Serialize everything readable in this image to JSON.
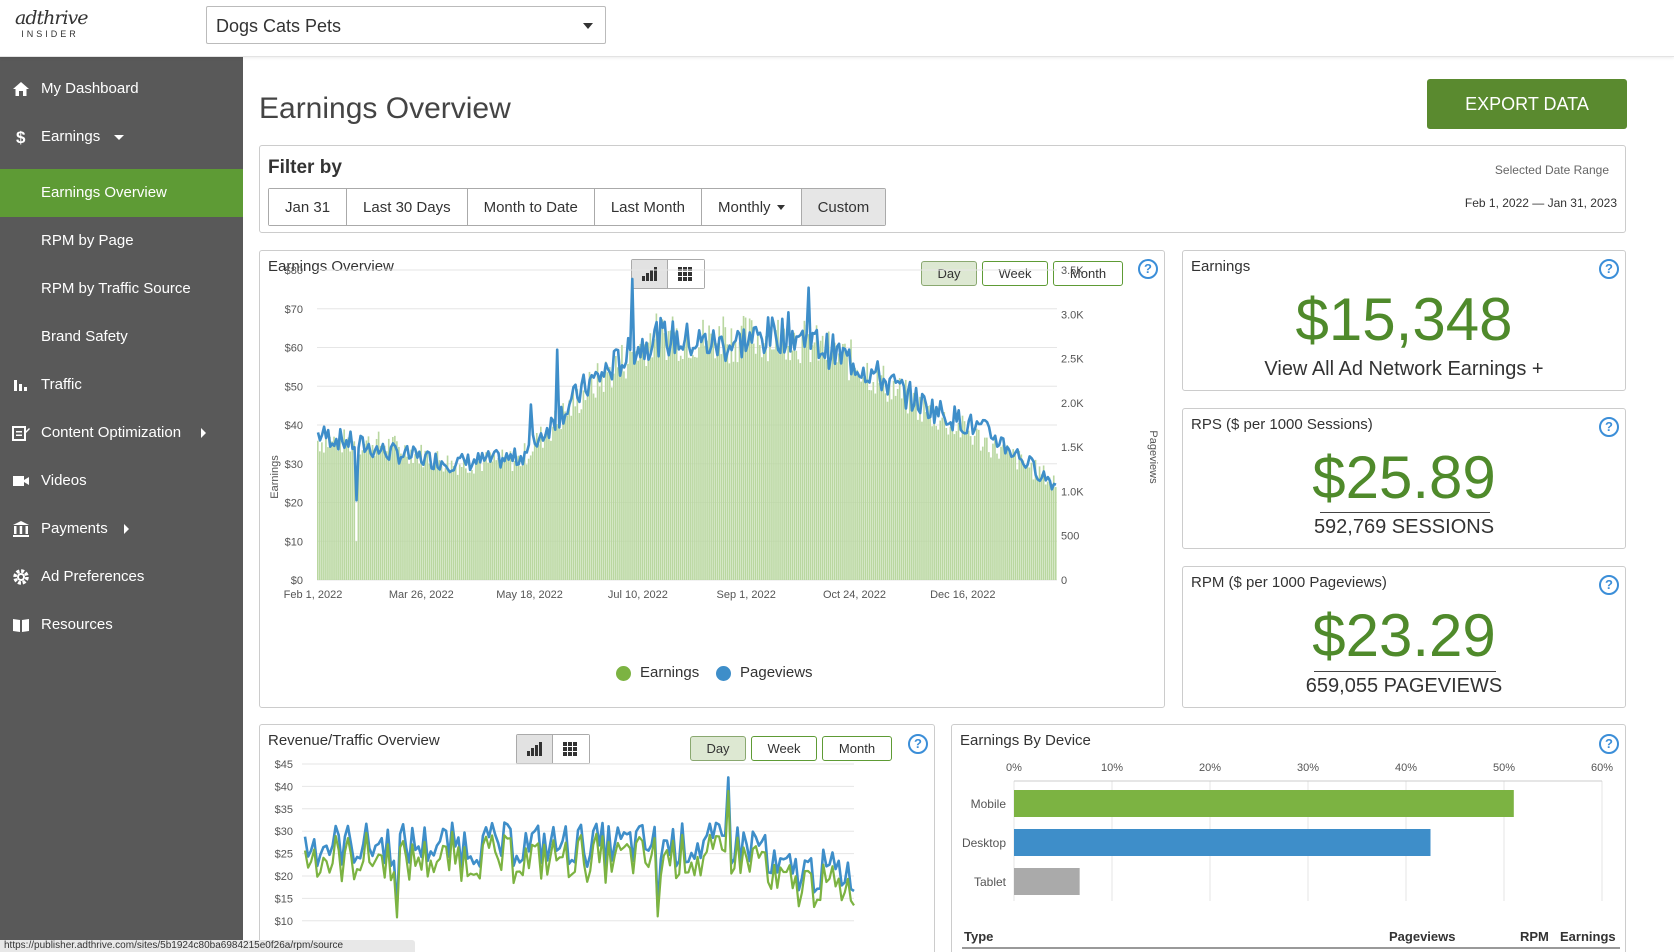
{
  "header": {
    "logo_top": "adthrive",
    "logo_bottom": "INSIDER",
    "site_select": "Dogs Cats Pets"
  },
  "sidebar": {
    "items": [
      {
        "label": "My Dashboard",
        "icon": "home-icon"
      },
      {
        "label": "Earnings",
        "icon": "dollar-icon",
        "expanded": true
      },
      {
        "label": "Earnings Overview",
        "sub": true,
        "active": true
      },
      {
        "label": "RPM by Page",
        "sub": true
      },
      {
        "label": "RPM by Traffic Source",
        "sub": true
      },
      {
        "label": "Brand Safety",
        "sub": true
      },
      {
        "label": "Traffic",
        "icon": "bar-chart-icon"
      },
      {
        "label": "Content Optimization",
        "icon": "edit-icon",
        "has_submenu": true
      },
      {
        "label": "Videos",
        "icon": "video-icon"
      },
      {
        "label": "Payments",
        "icon": "bank-icon",
        "has_submenu": true
      },
      {
        "label": "Ad Preferences",
        "icon": "gear-icon"
      },
      {
        "label": "Resources",
        "icon": "book-icon"
      }
    ]
  },
  "status_url": "https://publisher.adthrive.com/sites/5b1924c80ba6984215e0f26a/rpm/source",
  "main": {
    "title": "Earnings Overview",
    "export_label": "EXPORT DATA"
  },
  "filter": {
    "title": "Filter by",
    "buttons": [
      "Jan 31",
      "Last 30 Days",
      "Month to Date",
      "Last Month",
      "Monthly",
      "Custom"
    ],
    "selected": "Custom",
    "range_label": "Selected Date Range",
    "range_value": "Feb 1, 2022 — Jan 31, 2023"
  },
  "earnings_chart": {
    "title": "Earnings Overview",
    "periods": [
      "Day",
      "Week",
      "Month"
    ],
    "selected_period": "Day",
    "y_axis_label": "Earnings",
    "y2_axis_label": "Pageviews",
    "legend": [
      "Earnings",
      "Pageviews"
    ]
  },
  "stats": {
    "earnings": {
      "title": "Earnings",
      "value": "$15,348",
      "sub": "View All Ad Network Earnings +"
    },
    "rps": {
      "title": "RPS ($ per 1000 Sessions)",
      "value": "$25.89",
      "sub": "592,769 SESSIONS"
    },
    "rpm": {
      "title": "RPM ($ per 1000 Pageviews)",
      "value": "$23.29",
      "sub": "659,055 PAGEVIEWS"
    }
  },
  "revenue_chart": {
    "title": "Revenue/Traffic Overview",
    "periods": [
      "Day",
      "Week",
      "Month"
    ],
    "selected_period": "Day"
  },
  "device": {
    "title": "Earnings By Device",
    "table_headers": [
      "Type",
      "Pageviews",
      "RPM",
      "Earnings"
    ]
  },
  "colors": {
    "accent_green": "#5e9b35",
    "earnings_green": "#7cb342",
    "pageviews_blue": "#3e8ec9",
    "tablet_gray": "#aaaaaa"
  },
  "chart_data": [
    {
      "type": "bar",
      "title": "Earnings Overview",
      "ylabel": "Earnings",
      "y2label": "Pageviews",
      "ylim": [
        0,
        80
      ],
      "y2lim": [
        0,
        3500
      ],
      "yticks": [
        "$0",
        "$10",
        "$20",
        "$30",
        "$40",
        "$50",
        "$60",
        "$70",
        "$80"
      ],
      "y2ticks": [
        "0",
        "500",
        "1.0K",
        "1.5K",
        "2.0K",
        "2.5K",
        "3.0K",
        "3.5K"
      ],
      "xticks": [
        "Feb 1, 2022",
        "Mar 26, 2022",
        "May 18, 2022",
        "Jul 10, 2022",
        "Sep 1, 2022",
        "Oct 24, 2022",
        "Dec 16, 2022"
      ],
      "series": [
        {
          "name": "Earnings",
          "kind": "bar",
          "color": "#b9d7a0",
          "monthly_levels": [
            36,
            35,
            30,
            31,
            49,
            63,
            62,
            63,
            56,
            44,
            35,
            25
          ]
        },
        {
          "name": "Pageviews",
          "kind": "line",
          "color": "#3e8ec9",
          "monthly_levels": [
            1650,
            1450,
            1320,
            1380,
            2200,
            2750,
            2650,
            2800,
            2450,
            1980,
            1650,
            1050
          ]
        }
      ]
    },
    {
      "type": "line",
      "title": "Revenue/Traffic Overview",
      "ylim": [
        10,
        45
      ],
      "yticks": [
        "$45",
        "$40",
        "$35",
        "$30",
        "$25",
        "$20",
        "$15",
        "$10"
      ],
      "series": [
        {
          "color": "#3e8ec9",
          "level": 25
        },
        {
          "color": "#7cb342",
          "level": 22
        }
      ]
    },
    {
      "type": "bar",
      "title": "Earnings By Device",
      "orientation": "horizontal",
      "categories": [
        "Mobile",
        "Desktop",
        "Tablet"
      ],
      "values": [
        51,
        42.5,
        6.7
      ],
      "colors": [
        "#7cb342",
        "#3e8ec9",
        "#aaaaaa"
      ],
      "xlim": [
        0,
        60
      ],
      "xticks": [
        "0%",
        "10%",
        "20%",
        "30%",
        "40%",
        "50%",
        "60%"
      ]
    }
  ]
}
